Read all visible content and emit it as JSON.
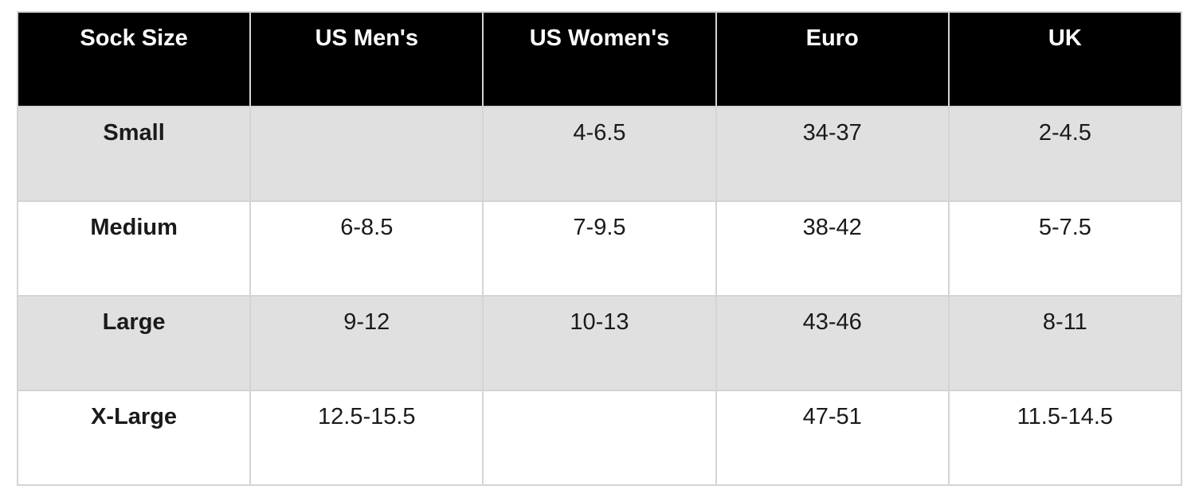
{
  "page": {
    "background": "#ffffff"
  },
  "colors": {
    "header_bg": "#000000",
    "header_text": "#ffffff",
    "row_alt_bg": "#e0e0e0",
    "row_bg": "#ffffff",
    "border": "#d4d4d4",
    "body_text": "#1a1a1a"
  },
  "chart_data": {
    "type": "table",
    "columns": [
      "Sock Size",
      "US Men's",
      "US Women's",
      "Euro",
      "UK"
    ],
    "rows": [
      [
        "Small",
        "",
        "4-6.5",
        "34-37",
        "2-4.5"
      ],
      [
        "Medium",
        "6-8.5",
        "7-9.5",
        "38-42",
        "5-7.5"
      ],
      [
        "Large",
        "9-12",
        "10-13",
        "43-46",
        "8-11"
      ],
      [
        "X-Large",
        "12.5-15.5",
        "",
        "47-51",
        "11.5-14.5"
      ]
    ]
  }
}
